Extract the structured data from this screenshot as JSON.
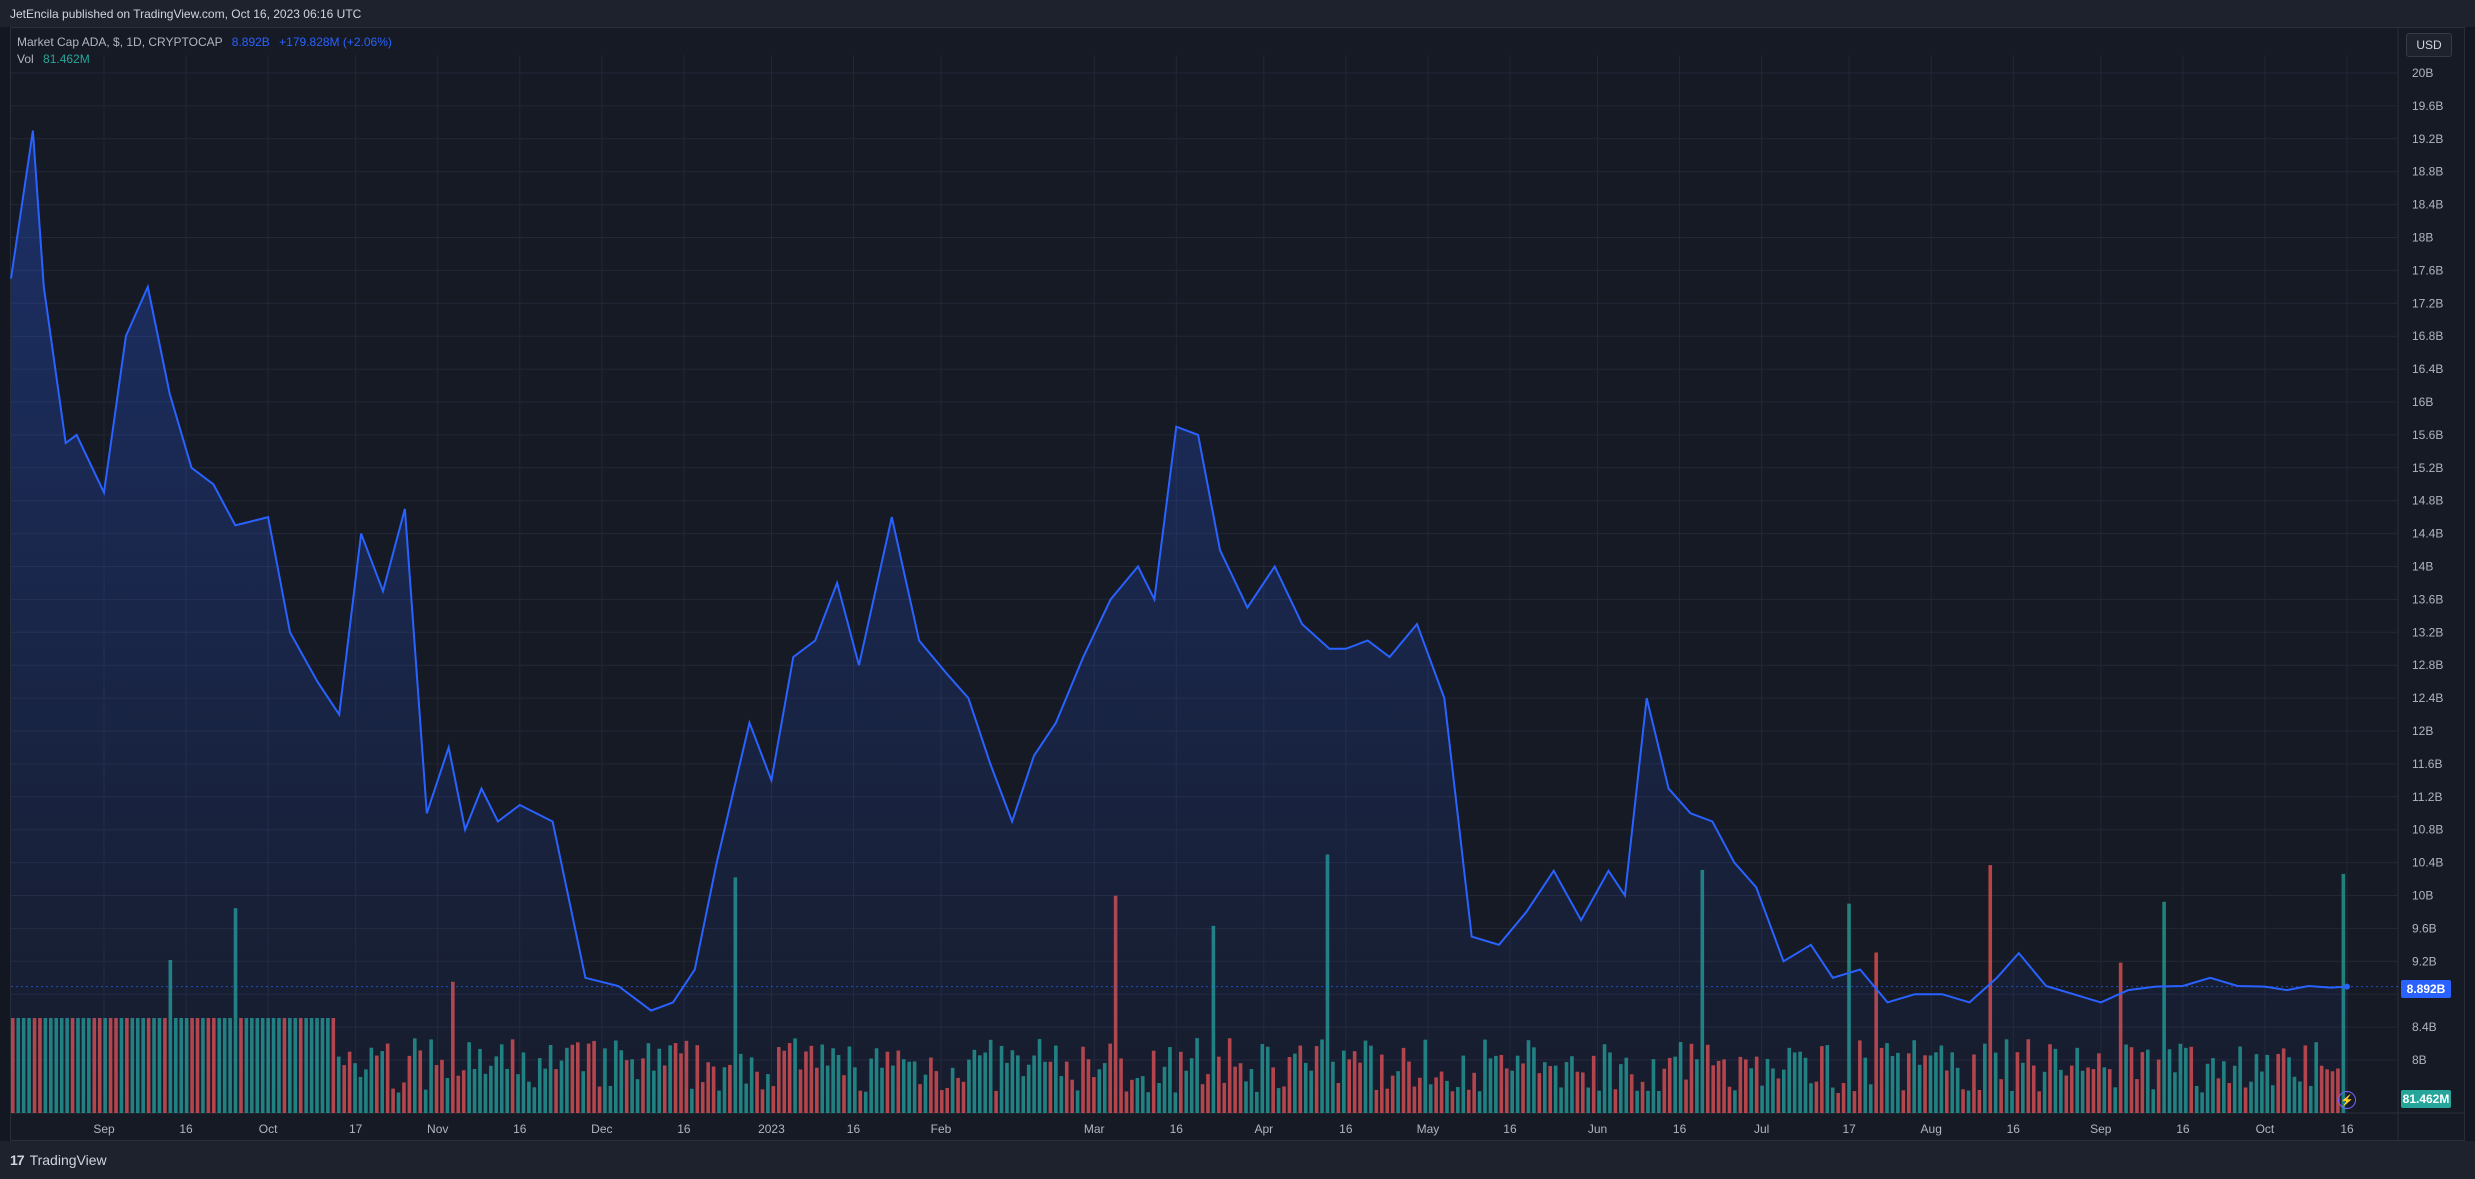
{
  "header": {
    "published": "JetEncila published on TradingView.com, Oct 16, 2023 06:16 UTC"
  },
  "legend": {
    "symbol": "Market Cap ADA, $, 1D, CRYPTOCAP",
    "value": "8.892B",
    "change": "+179.828M (+2.06%)",
    "vol_label": "Vol",
    "vol_value": "81.462M"
  },
  "currency_button": "USD",
  "price_tag": "8.892B",
  "volume_tag": "81.462M",
  "footer": {
    "logo": "17",
    "brand": "TradingView"
  },
  "colors": {
    "line": "#2962ff",
    "up_volume": "#26a69a",
    "down_volume": "#ef5350",
    "grid": "#232736",
    "axis_text": "#b2b5be",
    "background": "#161a25"
  },
  "icons": {
    "alert": "lightning-icon"
  },
  "chart_data": {
    "type": "area",
    "y_axis_ticks": [
      "20B",
      "19.6B",
      "19.2B",
      "18.8B",
      "18.4B",
      "18B",
      "17.6B",
      "17.2B",
      "16.8B",
      "16.4B",
      "16B",
      "15.6B",
      "15.2B",
      "14.8B",
      "14.4B",
      "14B",
      "13.6B",
      "13.2B",
      "12.8B",
      "12.4B",
      "12B",
      "11.6B",
      "11.2B",
      "10.8B",
      "10.4B",
      "10B",
      "9.6B",
      "9.2B",
      "8.8B",
      "8.4B",
      "8B"
    ],
    "ylim_billions": [
      7.6,
      20.1
    ],
    "x_axis_ticks": [
      "Sep",
      "16",
      "Oct",
      "17",
      "Nov",
      "16",
      "Dec",
      "16",
      "2023",
      "16",
      "Feb",
      "Mar",
      "16",
      "Apr",
      "16",
      "May",
      "16",
      "Jun",
      "16",
      "Jul",
      "17",
      "Aug",
      "16",
      "Sep",
      "16",
      "Oct",
      "16"
    ],
    "series": [
      {
        "name": "Market Cap ADA",
        "unit": "B USD",
        "x_dates": [
          "2022-08-15",
          "2022-08-19",
          "2022-08-21",
          "2022-08-25",
          "2022-08-27",
          "2022-09-01",
          "2022-09-05",
          "2022-09-09",
          "2022-09-13",
          "2022-09-17",
          "2022-09-21",
          "2022-09-25",
          "2022-10-01",
          "2022-10-05",
          "2022-10-10",
          "2022-10-14",
          "2022-10-18",
          "2022-10-22",
          "2022-10-26",
          "2022-10-30",
          "2022-11-03",
          "2022-11-06",
          "2022-11-09",
          "2022-11-12",
          "2022-11-16",
          "2022-11-22",
          "2022-11-28",
          "2022-12-04",
          "2022-12-10",
          "2022-12-14",
          "2022-12-18",
          "2022-12-22",
          "2022-12-28",
          "2023-01-01",
          "2023-01-05",
          "2023-01-09",
          "2023-01-13",
          "2023-01-17",
          "2023-01-23",
          "2023-01-28",
          "2023-02-02",
          "2023-02-06",
          "2023-02-10",
          "2023-02-14",
          "2023-02-18",
          "2023-02-22",
          "2023-02-27",
          "2023-03-04",
          "2023-03-09",
          "2023-03-12",
          "2023-03-16",
          "2023-03-20",
          "2023-03-24",
          "2023-03-29",
          "2023-04-03",
          "2023-04-08",
          "2023-04-13",
          "2023-04-16",
          "2023-04-20",
          "2023-04-24",
          "2023-04-29",
          "2023-05-04",
          "2023-05-09",
          "2023-05-14",
          "2023-05-19",
          "2023-05-24",
          "2023-05-29",
          "2023-06-03",
          "2023-06-06",
          "2023-06-10",
          "2023-06-14",
          "2023-06-18",
          "2023-06-22",
          "2023-06-26",
          "2023-06-30",
          "2023-07-05",
          "2023-07-10",
          "2023-07-14",
          "2023-07-19",
          "2023-07-24",
          "2023-07-29",
          "2023-08-03",
          "2023-08-08",
          "2023-08-13",
          "2023-08-17",
          "2023-08-22",
          "2023-08-27",
          "2023-09-01",
          "2023-09-06",
          "2023-09-11",
          "2023-09-16",
          "2023-09-21",
          "2023-09-26",
          "2023-10-01",
          "2023-10-05",
          "2023-10-09",
          "2023-10-13",
          "2023-10-16"
        ],
        "values": [
          17.5,
          19.3,
          17.4,
          15.5,
          15.6,
          14.9,
          16.8,
          17.4,
          16.1,
          15.2,
          15.0,
          14.5,
          14.6,
          13.2,
          12.6,
          12.2,
          14.4,
          13.7,
          14.7,
          11.0,
          11.8,
          10.8,
          11.3,
          10.9,
          11.1,
          10.9,
          9.0,
          8.9,
          8.6,
          8.7,
          9.1,
          10.4,
          12.1,
          11.4,
          12.9,
          13.1,
          13.8,
          12.8,
          14.6,
          13.1,
          12.7,
          12.4,
          11.6,
          10.9,
          11.7,
          12.1,
          12.9,
          13.6,
          14.0,
          13.6,
          15.7,
          15.6,
          14.2,
          13.5,
          14.0,
          13.3,
          13.0,
          13.0,
          13.1,
          12.9,
          13.3,
          12.4,
          9.5,
          9.4,
          9.8,
          10.3,
          9.7,
          10.3,
          10.0,
          12.4,
          11.3,
          11.0,
          10.9,
          10.4,
          10.1,
          9.2,
          9.4,
          9.0,
          9.1,
          8.7,
          8.8,
          8.8,
          8.7,
          9.0,
          9.3,
          8.9,
          8.8,
          8.7,
          8.85,
          8.892,
          8.9,
          9.0,
          8.9,
          8.892,
          8.85,
          8.9,
          8.88,
          8.892
        ]
      }
    ],
    "volume": {
      "name": "Vol",
      "last": "81.462M"
    },
    "grid": true
  }
}
